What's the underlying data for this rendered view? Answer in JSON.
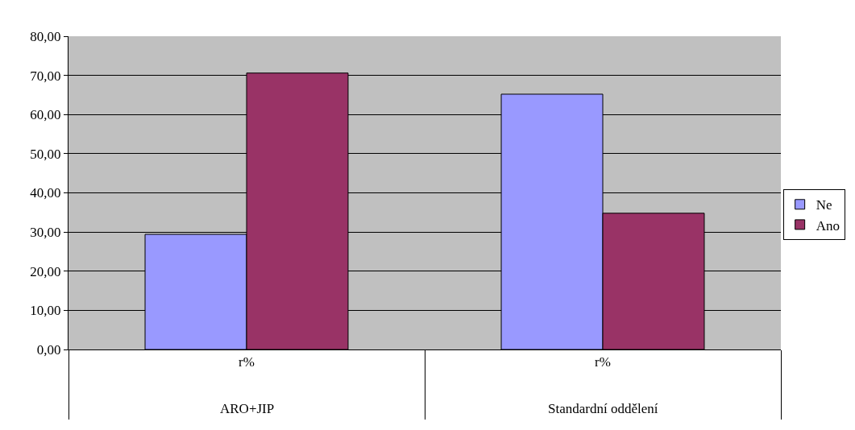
{
  "chart_data": {
    "type": "bar",
    "categories": [
      "r%\nARO+JIP",
      "r%\nStandardní oddělení"
    ],
    "series": [
      {
        "name": "Ne",
        "color": "#9999ff",
        "values": [
          29.4,
          65.2
        ]
      },
      {
        "name": "Ano",
        "color": "#993366",
        "values": [
          70.6,
          34.8
        ]
      }
    ],
    "ylim": [
      0,
      80
    ],
    "yticks": [
      {
        "value": 0,
        "label": "0,00"
      },
      {
        "value": 10,
        "label": "10,00"
      },
      {
        "value": 20,
        "label": "20,00"
      },
      {
        "value": 30,
        "label": "30,00"
      },
      {
        "value": 40,
        "label": "40,00"
      },
      {
        "value": 50,
        "label": "50,00"
      },
      {
        "value": 60,
        "label": "60,00"
      },
      {
        "value": 70,
        "label": "70,00"
      },
      {
        "value": 80,
        "label": "80,00"
      }
    ],
    "grid": "y",
    "legend": "right"
  }
}
